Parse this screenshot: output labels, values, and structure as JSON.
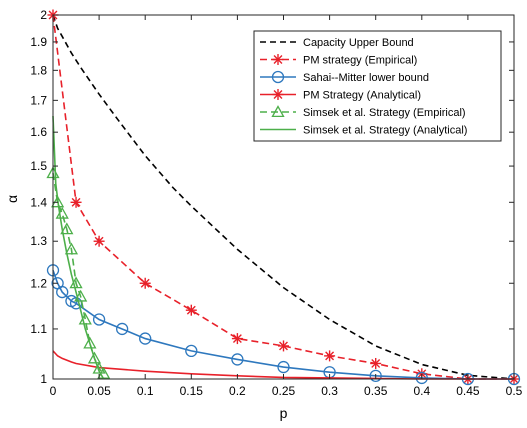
{
  "chart_data": {
    "type": "line",
    "xlabel": "p",
    "ylabel": "α",
    "xlim": [
      0,
      0.5
    ],
    "ylim": [
      1,
      2
    ],
    "y_scale": "log",
    "x_ticks": [
      0,
      0.05,
      0.1,
      0.15,
      0.2,
      0.25,
      0.3,
      0.35,
      0.4,
      0.45,
      0.5
    ],
    "x_tick_labels": [
      "0",
      "0.05",
      "0.1",
      "0.15",
      "0.2",
      "0.25",
      "0.3",
      "0.35",
      "0.4",
      "0.45",
      "0.5"
    ],
    "y_ticks": [
      1,
      1.1,
      1.2,
      1.3,
      1.4,
      1.5,
      1.6,
      1.7,
      1.8,
      1.9,
      2
    ],
    "y_tick_labels": [
      "1",
      "1.1",
      "1.2",
      "1.3",
      "1.4",
      "1.5",
      "1.6",
      "1.7",
      "1.8",
      "1.9",
      "2"
    ],
    "grid": false,
    "legend_position": "top-right",
    "series": [
      {
        "name": "Capacity Upper Bound",
        "color": "#000000",
        "dash": "6,4",
        "marker": "none",
        "x": [
          0,
          0.005,
          0.01,
          0.02,
          0.03,
          0.05,
          0.07,
          0.1,
          0.13,
          0.15,
          0.2,
          0.25,
          0.3,
          0.35,
          0.4,
          0.45,
          0.5
        ],
        "y": [
          2.0,
          1.95,
          1.92,
          1.86,
          1.81,
          1.72,
          1.64,
          1.53,
          1.44,
          1.39,
          1.28,
          1.19,
          1.12,
          1.065,
          1.028,
          1.007,
          1.0
        ]
      },
      {
        "name": "PM strategy (Empirical)",
        "color": "#e8212a",
        "dash": "7,4",
        "marker": "asterisk",
        "x": [
          0,
          0.025,
          0.05,
          0.1,
          0.15,
          0.2,
          0.25,
          0.3,
          0.35,
          0.4,
          0.45,
          0.5
        ],
        "y": [
          2.0,
          1.4,
          1.3,
          1.2,
          1.14,
          1.08,
          1.065,
          1.045,
          1.03,
          1.01,
          1.0,
          1.0
        ]
      },
      {
        "name": "Sahai--Mitter lower bound",
        "color": "#2e78be",
        "dash": "none",
        "marker": "circle",
        "x": [
          0,
          0.005,
          0.01,
          0.02,
          0.025,
          0.05,
          0.075,
          0.1,
          0.15,
          0.2,
          0.25,
          0.3,
          0.35,
          0.4,
          0.45,
          0.5
        ],
        "y": [
          1.23,
          1.2,
          1.18,
          1.16,
          1.155,
          1.12,
          1.1,
          1.08,
          1.055,
          1.038,
          1.023,
          1.013,
          1.006,
          1.002,
          1.0,
          1.0
        ]
      },
      {
        "name": "PM Strategy (Analytical)",
        "color": "#e8212a",
        "dash": "none",
        "marker": "asterisk",
        "x": [
          0,
          0.005,
          0.01,
          0.02,
          0.025,
          0.05,
          0.1,
          0.15,
          0.2,
          0.25,
          0.3,
          0.35,
          0.4,
          0.45,
          0.5
        ],
        "y": [
          1.055,
          1.045,
          1.04,
          1.033,
          1.03,
          1.022,
          1.015,
          1.01,
          1.006,
          1.003,
          1.002,
          1.001,
          1.0,
          1.0,
          1.0
        ]
      },
      {
        "name": "Simsek et al. Strategy (Empirical)",
        "color": "#4daf4a",
        "dash": "7,4",
        "marker": "triangle",
        "x": [
          0,
          0.005,
          0.01,
          0.015,
          0.02,
          0.025,
          0.03,
          0.035,
          0.04,
          0.045,
          0.05,
          0.055
        ],
        "y": [
          1.48,
          1.4,
          1.37,
          1.33,
          1.28,
          1.2,
          1.17,
          1.12,
          1.07,
          1.04,
          1.02,
          1.01
        ]
      },
      {
        "name": "Simsek et al. Strategy (Analytical)",
        "color": "#4daf4a",
        "dash": "none",
        "marker": "none",
        "x": [
          0,
          0.003,
          0.006,
          0.01,
          0.015,
          0.02,
          0.025,
          0.03,
          0.035,
          0.04,
          0.045,
          0.05,
          0.055
        ],
        "y": [
          1.65,
          1.45,
          1.39,
          1.33,
          1.27,
          1.22,
          1.18,
          1.14,
          1.1,
          1.07,
          1.04,
          1.015,
          1.0
        ]
      }
    ]
  }
}
